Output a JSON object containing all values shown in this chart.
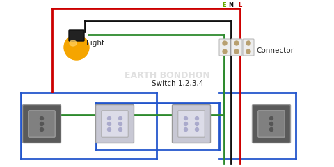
{
  "bg_color": "#ffffff",
  "wire_colors": {
    "red": "#cc0000",
    "green": "#2d8a2d",
    "black": "#111111",
    "blue": "#2255cc",
    "yellow_green": "#66aa00"
  },
  "connector_labels": [
    "E",
    "N",
    "L"
  ],
  "connector_label_colors": [
    "#66aa00",
    "#111111",
    "#cc0000"
  ],
  "label_switch": "Switch 1,2,3,4",
  "label_light": "Light",
  "label_connector": "Connector",
  "watermark": "EARTH BONDHON"
}
